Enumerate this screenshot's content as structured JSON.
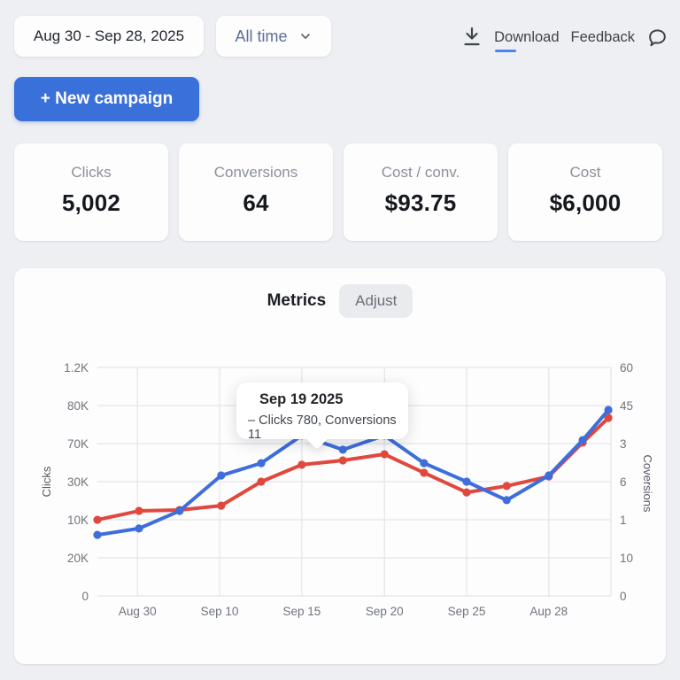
{
  "topbar": {
    "date_range": "Aug 30 - Sep 28, 2025",
    "time_filter": "All time",
    "download_label": "Download",
    "feedback_label": "Feedback",
    "icons": [
      "download-icon",
      "chevron-down-icon",
      "speech-bubble-icon"
    ]
  },
  "actions": {
    "new_campaign_label": "+ New campaign"
  },
  "stats": [
    {
      "label": "Clicks",
      "value": "5,002"
    },
    {
      "label": "Conversions",
      "value": "64"
    },
    {
      "label": "Cost / conv.",
      "value": "$93.75"
    },
    {
      "label": "Cost",
      "value": "$6,000"
    }
  ],
  "metrics_panel": {
    "title": "Metrics",
    "adjust_label": "Adjust",
    "tooltip": {
      "title": "Sep 19 2025",
      "body": "– Clicks 780, Conversions 11"
    }
  },
  "colors": {
    "accent_blue": "#3a70d9",
    "chart_blue": "#3d6edb",
    "chart_red": "#e0483e",
    "grid": "#e4e6e9",
    "tick_text": "#6f747c"
  },
  "chart_data": {
    "type": "line",
    "title": "Metrics",
    "ylabel_left": "Clicks",
    "ylabel_right": "Coversions",
    "y_ticks_left": [
      "1.2K",
      "80K",
      "70K",
      "30K",
      "10K",
      "20K",
      "0"
    ],
    "y_ticks_right": [
      "60",
      "45",
      "3",
      "6",
      "1",
      "10",
      "0"
    ],
    "x_ticks": [
      "Aug 30",
      "Sep 10",
      "Sep 15",
      "Sep 20",
      "Sep 25",
      "Aup 28"
    ],
    "x_tick_pct": [
      7.8,
      23.8,
      39.8,
      55.9,
      71.9,
      87.9
    ],
    "grid": true,
    "legend_position": "none",
    "x_pct": [
      0,
      8.1,
      16.0,
      24.1,
      31.9,
      39.8,
      47.8,
      55.9,
      63.6,
      71.9,
      79.7,
      87.9,
      94.5,
      99.5
    ],
    "series": [
      {
        "name": "Clicks",
        "color": "#3d6edb",
        "values_pct": [
          26.7,
          29.5,
          37.2,
          52.7,
          58.1,
          70.2,
          64.0,
          70.2,
          58.1,
          50.0,
          41.9,
          52.7,
          68.2,
          81.4
        ]
      },
      {
        "name": "Conversions",
        "color": "#e0483e",
        "values_pct": [
          33.3,
          37.2,
          37.6,
          39.5,
          50.0,
          57.4,
          59.3,
          62.0,
          53.9,
          45.3,
          48.1,
          52.3,
          67.1,
          77.9
        ]
      }
    ],
    "highlighted_point": {
      "date": "Sep 19 2025",
      "clicks": 780,
      "conversions": 11
    }
  }
}
